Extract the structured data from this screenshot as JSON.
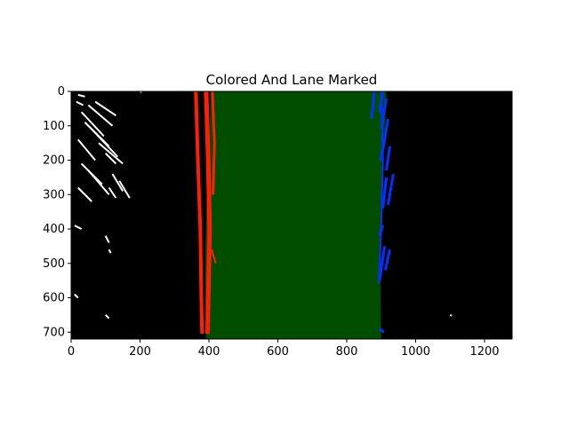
{
  "figure": {
    "title": "Colored And Lane Marked"
  },
  "image": {
    "width_units": 1280,
    "height_units": 720,
    "background_color": "#000000",
    "lane_fill_color": "#004d00",
    "left_lane_color": "#ff2000",
    "right_lane_color": "#0033ff",
    "noise_color": "#ffffff"
  },
  "axes": {
    "x_ticks": [
      {
        "value": 0,
        "label": "0"
      },
      {
        "value": 200,
        "label": "200"
      },
      {
        "value": 400,
        "label": "400"
      },
      {
        "value": 600,
        "label": "600"
      },
      {
        "value": 800,
        "label": "800"
      },
      {
        "value": 1000,
        "label": "1000"
      },
      {
        "value": 1200,
        "label": "1200"
      }
    ],
    "y_ticks": [
      {
        "value": 0,
        "label": "0"
      },
      {
        "value": 100,
        "label": "100"
      },
      {
        "value": 200,
        "label": "200"
      },
      {
        "value": 300,
        "label": "300"
      },
      {
        "value": 400,
        "label": "400"
      },
      {
        "value": 500,
        "label": "500"
      },
      {
        "value": 600,
        "label": "600"
      },
      {
        "value": 700,
        "label": "700"
      }
    ]
  }
}
